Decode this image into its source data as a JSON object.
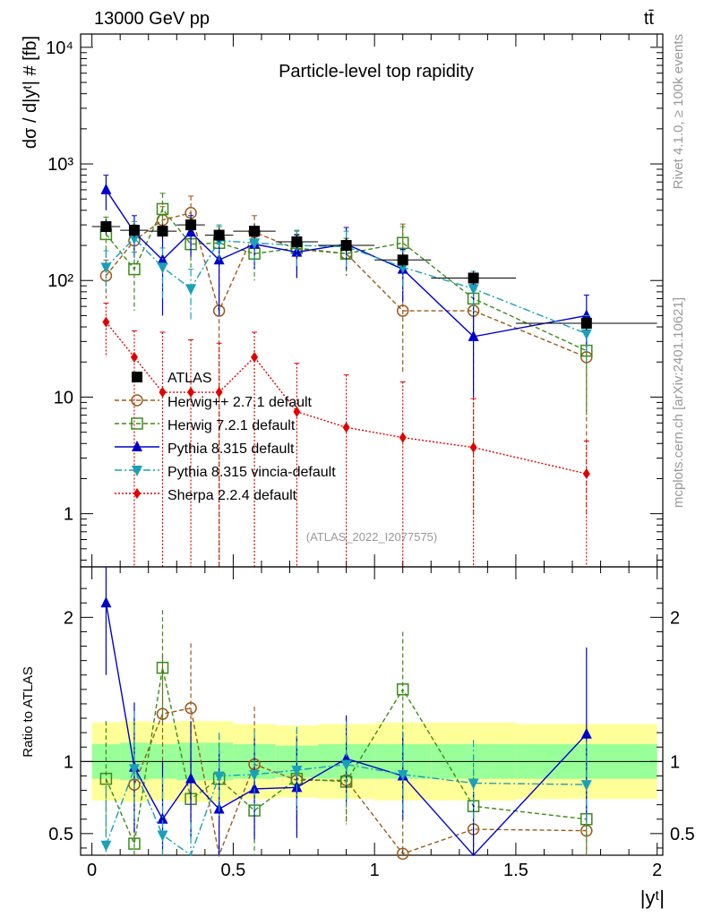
{
  "header": {
    "left": "13000 GeV pp",
    "right": "tt̄",
    "side_top": "Rivet 4.1.0, ≥ 100k events",
    "side_bottom": "mcplots.cern.ch [arXiv:2401.10621]"
  },
  "chart_data": [
    {
      "type": "line",
      "panel": "main",
      "title": "Particle-level top rapidity",
      "watermark": "(ATLAS_2022_I2077575)",
      "ylabel": "dσ / d|yᵗ| # [fb]",
      "yscale": "log",
      "ylim": [
        0.35,
        13000
      ],
      "xlim": [
        -0.04,
        2.02
      ],
      "yticks": [
        {
          "value": 1,
          "label": "1"
        },
        {
          "value": 10,
          "label": "10"
        },
        {
          "value": 100,
          "label": "10²"
        },
        {
          "value": 1000,
          "label": "10³"
        },
        {
          "value": 10000,
          "label": "10⁴"
        }
      ],
      "x": [
        0.05,
        0.15,
        0.25,
        0.35,
        0.45,
        0.575,
        0.725,
        0.9,
        1.1,
        1.35,
        1.75
      ],
      "xerr": [
        0.05,
        0.05,
        0.05,
        0.05,
        0.05,
        0.075,
        0.075,
        0.1,
        0.1,
        0.15,
        0.25
      ],
      "data": {
        "name": "ATLAS",
        "values": [
          290,
          270,
          265,
          300,
          245,
          265,
          215,
          200,
          150,
          105,
          43
        ]
      },
      "series": [
        {
          "name": "Herwig++ 2.7.1 default",
          "color": "#9c5a1a",
          "marker": "circle",
          "dash": "5,3",
          "values": [
            110,
            220,
            330,
            380,
            55,
            260,
            185,
            170,
            55,
            55,
            22
          ],
          "err_up": [
            40,
            80,
            100,
            150,
            200,
            100,
            80,
            60,
            250,
            60,
            15
          ],
          "err_dn": [
            40,
            80,
            100,
            150,
            55,
            100,
            80,
            60,
            39,
            54,
            21
          ]
        },
        {
          "name": "Herwig 7.2.1 default",
          "color": "#3a8c1a",
          "marker": "square",
          "dash": "5,3",
          "values": [
            250,
            125,
            410,
            205,
            210,
            170,
            190,
            170,
            210,
            70,
            25
          ],
          "err_up": [
            100,
            50,
            150,
            80,
            80,
            70,
            60,
            60,
            80,
            40,
            14
          ],
          "err_dn": [
            100,
            70,
            150,
            80,
            80,
            70,
            60,
            60,
            80,
            35,
            18
          ]
        },
        {
          "name": "Pythia 8.315 default",
          "color": "#0000cc",
          "marker": "triangle-up",
          "dash": "",
          "values": [
            600,
            260,
            150,
            260,
            150,
            205,
            175,
            205,
            125,
            33,
            50
          ],
          "err_up": [
            200,
            100,
            100,
            100,
            100,
            80,
            70,
            80,
            60,
            60,
            25
          ],
          "err_dn": [
            200,
            100,
            100,
            100,
            100,
            80,
            70,
            80,
            60,
            23,
            25
          ]
        },
        {
          "name": "Pythia 8.315 vincia-default",
          "color": "#1aa0b8",
          "marker": "triangle-down",
          "dash": "8,3,2,3",
          "values": [
            130,
            230,
            130,
            85,
            220,
            210,
            200,
            195,
            130,
            85,
            35
          ],
          "err_up": [
            50,
            90,
            60,
            40,
            80,
            80,
            70,
            70,
            50,
            35,
            15
          ],
          "err_dn": [
            50,
            90,
            60,
            40,
            80,
            80,
            70,
            70,
            50,
            35,
            15
          ]
        },
        {
          "name": "Sherpa 2.2.4 default",
          "color": "#e00000",
          "marker": "diamond",
          "dash": "2,2",
          "values": [
            44,
            22,
            11,
            11,
            11,
            22,
            7.5,
            5.5,
            4.5,
            3.7,
            2.2
          ],
          "err_up": [
            20,
            15,
            25,
            20,
            18,
            14,
            12,
            10,
            9,
            6,
            2
          ],
          "err_dn": [
            22,
            22,
            11,
            11,
            11,
            22,
            7.5,
            5.5,
            4.5,
            3.7,
            2.2
          ]
        }
      ]
    },
    {
      "type": "line",
      "panel": "ratio",
      "ylabel": "Ratio to ATLAS",
      "ylim": [
        0.35,
        2.35
      ],
      "xlim": [
        -0.04,
        2.02
      ],
      "xlabel": "|yᵗ|",
      "xticks": [
        {
          "value": 0,
          "label": "0"
        },
        {
          "value": 0.5,
          "label": "0.5"
        },
        {
          "value": 1,
          "label": "1"
        },
        {
          "value": 1.5,
          "label": "1.5"
        },
        {
          "value": 2,
          "label": "2"
        }
      ],
      "yticks": [
        {
          "value": 0.5,
          "label": "0.5"
        },
        {
          "value": 1,
          "label": "1"
        },
        {
          "value": 2,
          "label": "2"
        }
      ],
      "band_stat": [
        0.12,
        0.13,
        0.12,
        0.13,
        0.13,
        0.12,
        0.11,
        0.12,
        0.12,
        0.12,
        0.12
      ],
      "band_total": [
        0.27,
        0.28,
        0.27,
        0.28,
        0.28,
        0.26,
        0.25,
        0.26,
        0.27,
        0.27,
        0.26
      ],
      "series": [
        {
          "name": "Herwig++ 2.7.1 default",
          "values": [
            null,
            0.84,
            1.33,
            1.37,
            0.22,
            0.98,
            0.87,
            0.87,
            0.36,
            0.53,
            0.52
          ],
          "err_up": [
            null,
            0.4,
            0.4,
            0.45,
            0.6,
            0.4,
            0.35,
            0.3,
            0.8,
            0.4,
            0.3
          ],
          "err_dn": [
            null,
            0.4,
            0.4,
            0.45,
            0.2,
            0.4,
            0.35,
            0.3,
            0.3,
            0.4,
            0.4
          ]
        },
        {
          "name": "Herwig 7.2.1 default",
          "values": [
            0.88,
            0.43,
            1.65,
            0.74,
            0.88,
            0.66,
            0.88,
            0.86,
            1.5,
            0.69,
            0.6
          ],
          "err_up": [
            0.4,
            0.3,
            0.4,
            0.3,
            0.3,
            0.3,
            0.3,
            0.3,
            0.4,
            0.35,
            0.35
          ],
          "err_dn": [
            0.4,
            0.3,
            0.4,
            0.3,
            0.3,
            0.3,
            0.3,
            0.3,
            0.4,
            0.35,
            0.35
          ]
        },
        {
          "name": "Pythia 8.315 default",
          "values": [
            2.1,
            0.96,
            0.6,
            0.88,
            0.67,
            0.81,
            0.82,
            1.02,
            0.9,
            0.29,
            1.19
          ],
          "err_up": [
            0.5,
            0.45,
            0.4,
            0.4,
            0.4,
            0.35,
            0.35,
            0.3,
            0.3,
            0.5,
            0.6
          ],
          "err_dn": [
            0.5,
            0.45,
            0.4,
            0.4,
            0.4,
            0.35,
            0.35,
            0.3,
            0.3,
            0.2,
            0.6
          ]
        },
        {
          "name": "Pythia 8.315 vincia-default",
          "values": [
            0.42,
            0.95,
            0.49,
            0.28,
            0.9,
            0.91,
            0.94,
            0.98,
            0.91,
            0.85,
            0.84
          ],
          "err_up": [
            0.4,
            0.4,
            0.4,
            0.3,
            0.3,
            0.3,
            0.3,
            0.3,
            0.3,
            0.3,
            0.3
          ],
          "err_dn": [
            0.4,
            0.4,
            0.4,
            0.3,
            0.3,
            0.3,
            0.3,
            0.3,
            0.3,
            0.3,
            0.3
          ]
        }
      ]
    }
  ]
}
